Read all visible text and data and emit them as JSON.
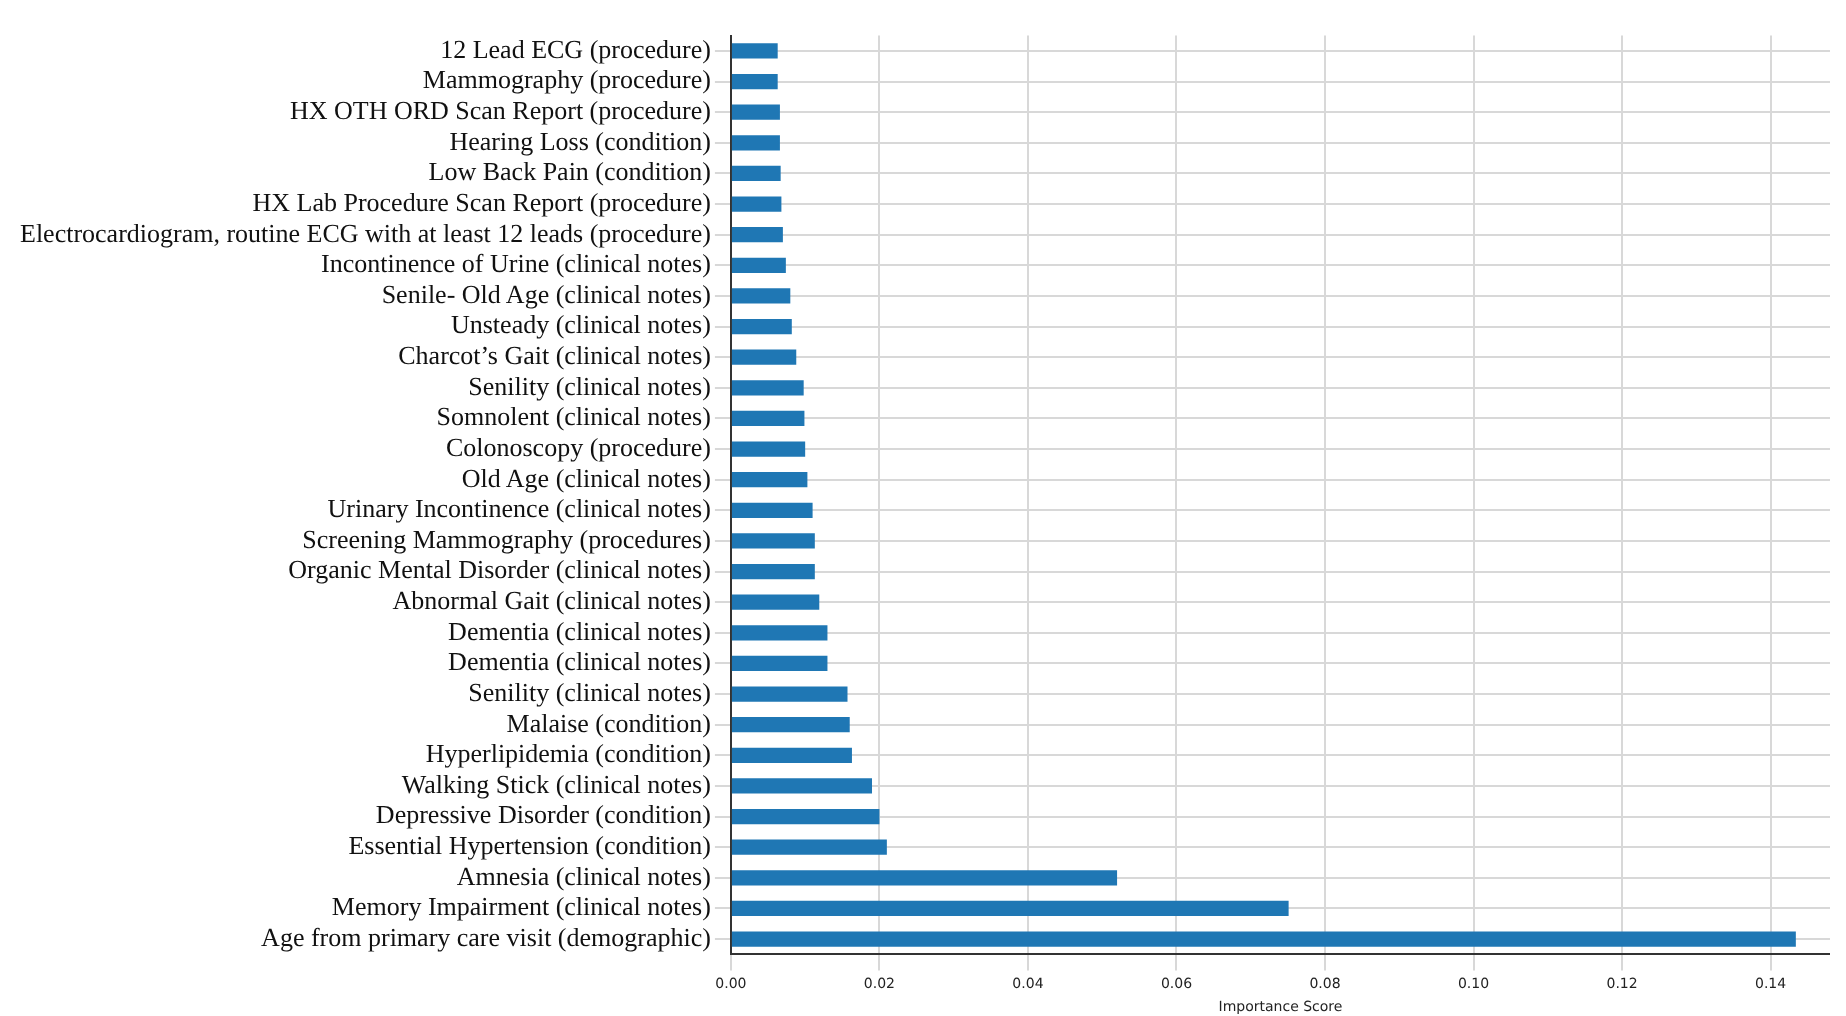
{
  "chart_data": {
    "type": "bar",
    "orientation": "horizontal",
    "xlabel": "Importance Score",
    "categories": [
      "12 Lead ECG (procedure)",
      "Mammography (procedure)",
      "HX OTH ORD Scan Report (procedure)",
      "Hearing Loss (condition)",
      "Low Back Pain (condition)",
      "HX Lab Procedure Scan Report (procedure)",
      "Electrocardiogram, routine ECG with at least 12 leads (procedure)",
      "Incontinence of Urine (clinical notes)",
      "Senile- Old Age (clinical notes)",
      "Unsteady (clinical notes)",
      "Charcot’s Gait (clinical notes)",
      "Senility (clinical notes)",
      "Somnolent (clinical notes)",
      "Colonoscopy (procedure)",
      "Old Age (clinical notes)",
      "Urinary Incontinence (clinical notes)",
      "Screening Mammography (procedures)",
      "Organic Mental Disorder (clinical notes)",
      "Abnormal Gait (clinical notes)",
      "Dementia (clinical notes)",
      "Dementia (clinical notes)",
      "Senility (clinical notes)",
      "Malaise (condition)",
      "Hyperlipidemia (condition)",
      "Walking Stick (clinical notes)",
      "Depressive Disorder (condition)",
      "Essential Hypertension (condition)",
      "Amnesia (clinical notes)",
      "Memory Impairment (clinical notes)",
      "Age from primary care visit (demographic)"
    ],
    "values": [
      0.0063,
      0.0063,
      0.0066,
      0.0066,
      0.0067,
      0.0068,
      0.007,
      0.0074,
      0.008,
      0.0082,
      0.0088,
      0.0098,
      0.0099,
      0.01,
      0.0103,
      0.011,
      0.0113,
      0.0113,
      0.0119,
      0.013,
      0.013,
      0.0157,
      0.016,
      0.0163,
      0.019,
      0.02,
      0.021,
      0.052,
      0.0751,
      0.1434
    ],
    "color": "#1f77b4",
    "xlim": [
      0,
      0.148
    ],
    "xticks": [
      {
        "value": 0,
        "label": "0.00"
      },
      {
        "value": 0.02,
        "label": "0.02"
      },
      {
        "value": 0.04,
        "label": "0.04"
      },
      {
        "value": 0.06,
        "label": "0.06"
      },
      {
        "value": 0.08,
        "label": "0.08"
      },
      {
        "value": 0.1,
        "label": "0.10"
      },
      {
        "value": 0.12,
        "label": "0.12"
      },
      {
        "value": 0.14,
        "label": "0.14"
      }
    ],
    "grid": true
  }
}
